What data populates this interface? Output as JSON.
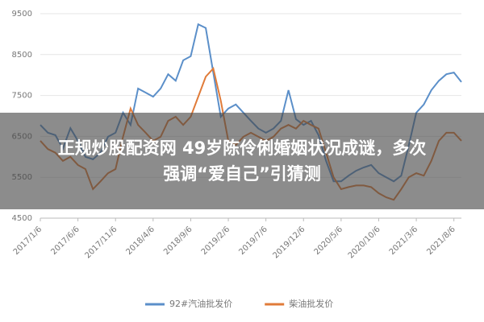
{
  "chart_data": {
    "type": "line",
    "categories": [
      "2017/1/6",
      null,
      null,
      null,
      null,
      "2017/6/6",
      null,
      null,
      null,
      null,
      "2017/11/6",
      null,
      null,
      null,
      null,
      "2018/4/6",
      null,
      null,
      null,
      null,
      "2018/9/6",
      null,
      null,
      null,
      null,
      "2019/2/6",
      null,
      null,
      null,
      null,
      "2019/7/6",
      null,
      null,
      null,
      null,
      "2019/12/6",
      null,
      null,
      null,
      null,
      "2020/5/6",
      null,
      null,
      null,
      null,
      "2020/10/6",
      null,
      null,
      null,
      null,
      "2021/3/6",
      null,
      null,
      null,
      null,
      "2021/8/6",
      null
    ],
    "series": [
      {
        "name": "92#汽油批发价",
        "color": "#5b8fc9",
        "values": [
          6780,
          6590,
          6530,
          6200,
          6700,
          6390,
          6000,
          5940,
          6100,
          6490,
          6590,
          7080,
          6780,
          7670,
          7570,
          7470,
          7670,
          8020,
          7860,
          8360,
          8460,
          9240,
          9150,
          8060,
          6980,
          7180,
          7280,
          7080,
          6880,
          6690,
          6590,
          6690,
          6880,
          7630,
          6920,
          6780,
          6880,
          6530,
          5900,
          5400,
          5400,
          5540,
          5660,
          5740,
          5800,
          5600,
          5500,
          5400,
          5540,
          6280,
          7080,
          7280,
          7630,
          7860,
          8020,
          8060,
          7830
        ]
      },
      {
        "name": "柴油批发价",
        "color": "#e07b39",
        "values": [
          6390,
          6190,
          6100,
          5900,
          6000,
          5800,
          5700,
          5210,
          5400,
          5600,
          5700,
          6490,
          7180,
          6780,
          6590,
          6390,
          6490,
          6880,
          6980,
          6780,
          6980,
          7470,
          7960,
          8160,
          7370,
          6390,
          6290,
          6490,
          6590,
          6490,
          6390,
          6490,
          6690,
          6780,
          6690,
          6880,
          6780,
          6690,
          6100,
          5500,
          5210,
          5260,
          5300,
          5300,
          5260,
          5110,
          5010,
          4950,
          5210,
          5500,
          5600,
          5540,
          5900,
          6390,
          6590,
          6590,
          6390
        ]
      }
    ],
    "ylim": [
      4500,
      9500
    ],
    "yticks": [
      4500,
      5500,
      6500,
      7500,
      8500,
      9500
    ],
    "grid": true,
    "legend": "bottom"
  },
  "banner": {
    "lines": [
      "正规炒股配资网 49岁陈伶俐婚姻状况成谜，多次",
      "强调“爱自己”引猜测"
    ]
  }
}
